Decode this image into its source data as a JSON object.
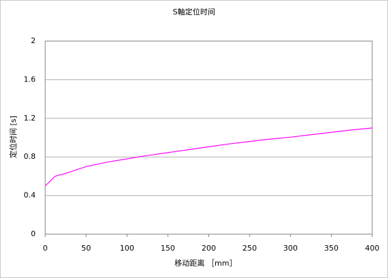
{
  "chart_data": {
    "type": "line",
    "title": "S軸定位时间",
    "x_label": "移动距离 ［mm］",
    "y_label": "定位时间 [s]",
    "x": [
      0,
      12,
      25,
      50,
      75,
      100,
      125,
      150,
      175,
      200,
      225,
      250,
      275,
      300,
      325,
      350,
      375,
      400
    ],
    "series": [
      {
        "color": "#ff00ff",
        "values": [
          0.5,
          0.6,
          0.63,
          0.7,
          0.745,
          0.78,
          0.815,
          0.845,
          0.875,
          0.905,
          0.935,
          0.96,
          0.985,
          1.005,
          1.03,
          1.055,
          1.08,
          1.1
        ]
      }
    ],
    "xlim": [
      0,
      400
    ],
    "xticks": [
      0,
      50,
      100,
      150,
      200,
      250,
      300,
      350,
      400
    ],
    "ylim": [
      0,
      2
    ],
    "yticks": [
      0,
      0.4,
      0.8,
      1.2,
      1.6,
      2
    ],
    "grid": true
  }
}
